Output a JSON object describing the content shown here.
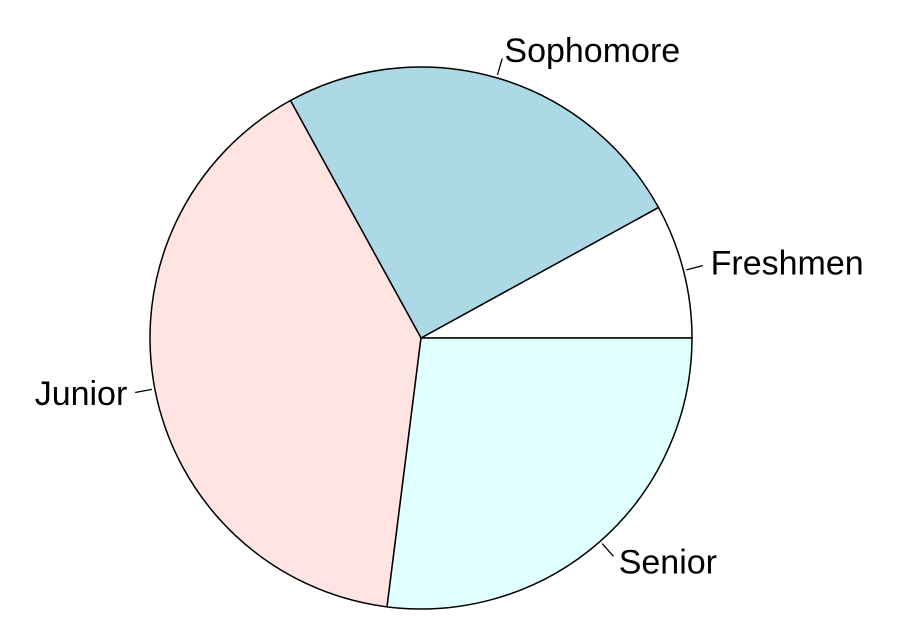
{
  "chart_data": {
    "type": "pie",
    "title": "",
    "direction": "counterclockwise",
    "start": "3 o'clock",
    "slices": [
      {
        "label": "Freshmen",
        "value": 8,
        "color": "#ffffff"
      },
      {
        "label": "Sophomore",
        "value": 25,
        "color": "#add8e6"
      },
      {
        "label": "Junior",
        "value": 40,
        "color": "#ffe4e1"
      },
      {
        "label": "Senior",
        "value": 27,
        "color": "#e0ffff"
      }
    ]
  }
}
